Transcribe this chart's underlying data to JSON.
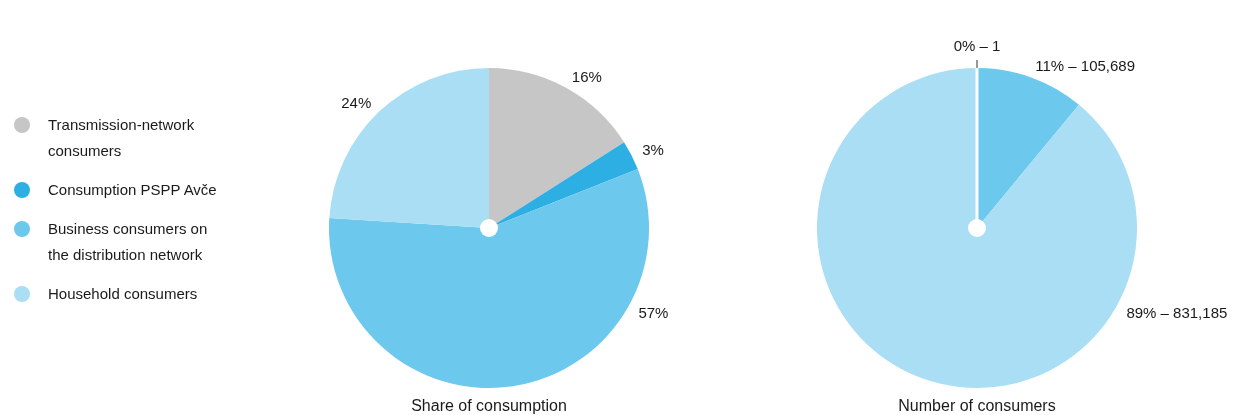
{
  "chart_data": [
    {
      "type": "pie",
      "title": "Share of consumption",
      "categories": [
        "Transmission-network consumers",
        "Consumption PSPP Avče",
        "Business consumers on the distribution network",
        "Household consumers"
      ],
      "values": [
        16,
        3,
        57,
        24
      ],
      "colors": [
        "#c6c6c6",
        "#2eafe4",
        "#6cc8ed",
        "#a9def5"
      ],
      "value_labels": [
        "16%",
        "3%",
        "57%",
        "24%"
      ],
      "legend": "left"
    },
    {
      "type": "pie",
      "title": "Number of consumers",
      "categories": [
        null,
        null,
        null
      ],
      "values": [
        0,
        11,
        89
      ],
      "colors": [
        "#c6c6c6",
        "#6cc8ed",
        "#a9def5"
      ],
      "value_labels": [
        "0% – 1",
        "11% – 105,689",
        "89% – 831,185"
      ]
    }
  ]
}
